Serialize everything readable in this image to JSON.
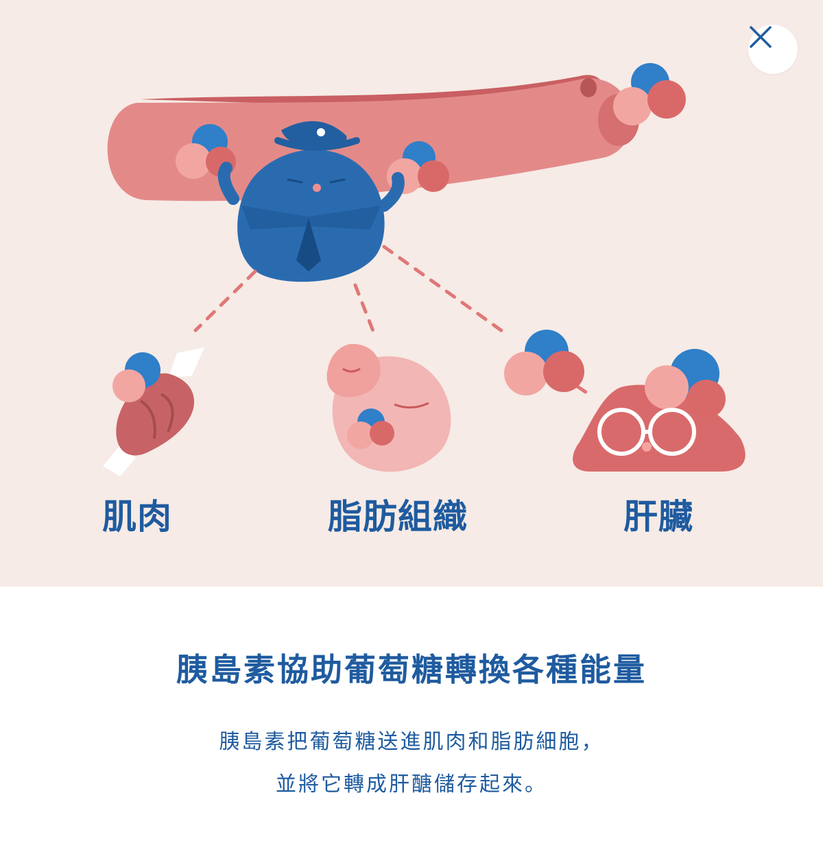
{
  "illustration": {
    "labels": {
      "muscle": "肌肉",
      "fat": "脂肪組織",
      "liver": "肝臟"
    }
  },
  "close": {
    "icon": "close-icon"
  },
  "caption": {
    "title": "胰島素協助葡萄糖轉換各種能量",
    "line1": "胰島素把葡萄糖送進肌肉和脂肪細胞，",
    "line2": "並將它轉成肝醣儲存起來。"
  },
  "colors": {
    "brand_blue": "#1f5b9f",
    "background": "#f6ebe6",
    "vessel_red": "#e08585",
    "glucose_blue": "#2f7fc9",
    "glucose_pink": "#ef9f9f",
    "glucose_red": "#d96969"
  }
}
